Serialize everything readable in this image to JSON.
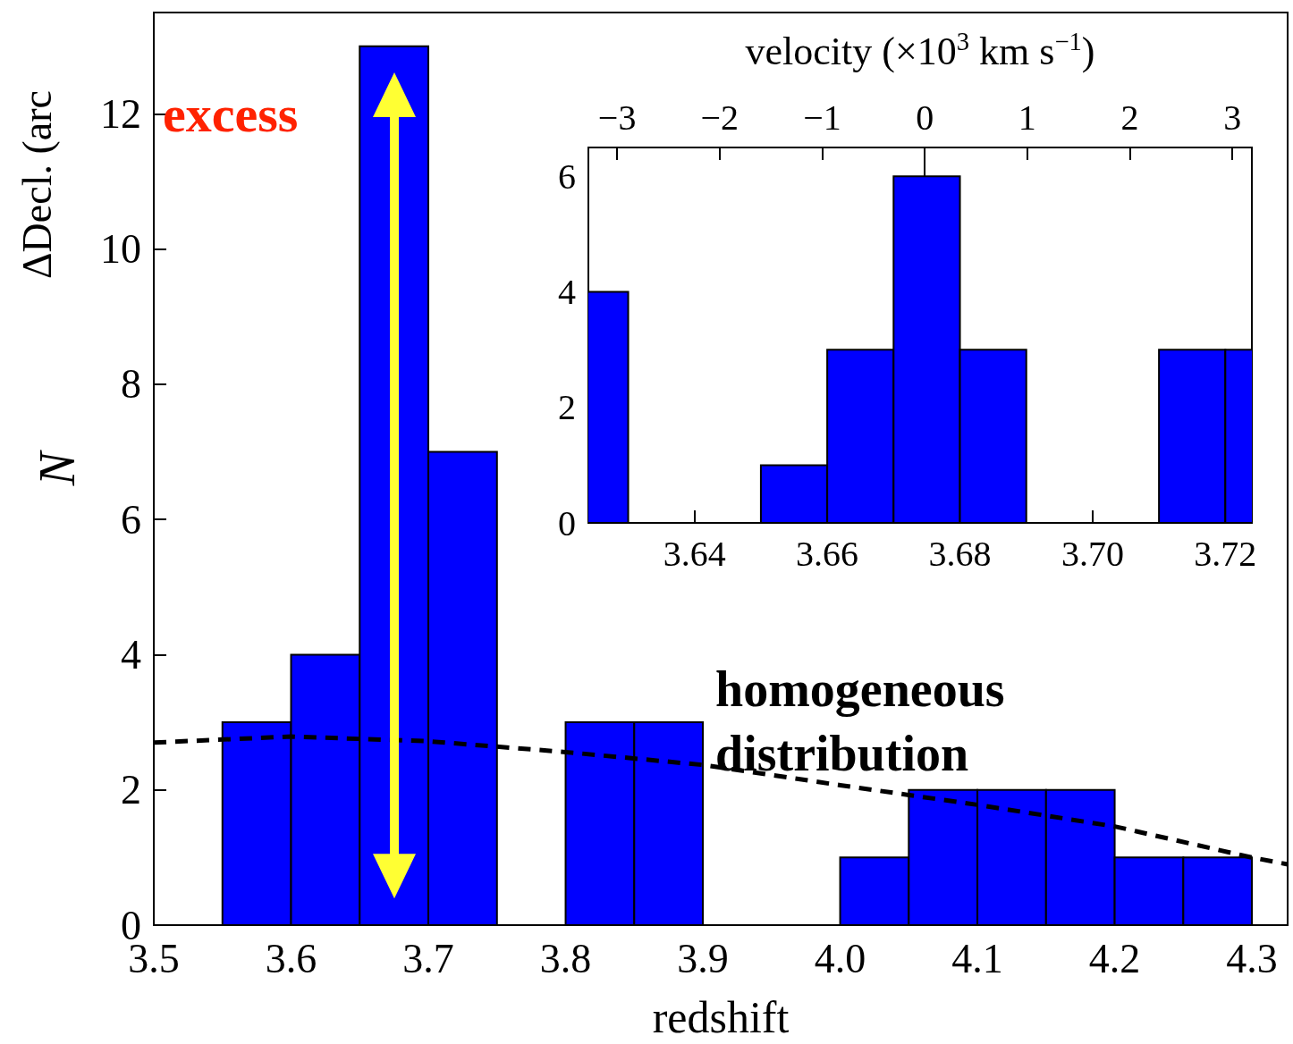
{
  "chart_data": [
    {
      "type": "histogram",
      "xlabel": "redshift",
      "ylabel": "N",
      "annotations": [
        "excess",
        "homogeneous distribution",
        "ΔDecl. (arc"
      ],
      "bins": [
        3.55,
        3.6,
        3.65,
        3.7,
        3.75,
        3.8,
        3.85,
        3.9,
        3.95,
        4.0,
        4.05,
        4.1,
        4.15,
        4.2,
        4.25,
        4.3
      ],
      "xlim": [
        3.5,
        4.326
      ],
      "xticks": [
        3.5,
        3.6,
        3.7,
        3.8,
        3.9,
        {
          "value": 4,
          "label": "4.0"
        },
        4.1,
        4.2,
        4.3
      ],
      "ylim": [
        0,
        13.5
      ],
      "yticks": [
        0,
        2,
        4,
        6,
        8,
        10,
        12
      ],
      "series": [
        {
          "type": "histogram",
          "color": "#0000ff",
          "values": [
            3,
            4,
            13,
            7,
            0,
            3,
            3,
            0,
            0,
            1,
            2,
            2,
            2,
            1,
            1
          ]
        },
        {
          "type": "line",
          "color": "#000000",
          "line_style": "dashed",
          "marker": "none",
          "x": [
            3.5,
            3.6,
            3.7,
            3.8,
            3.9,
            4.0,
            4.1,
            4.2,
            4.3,
            4.326
          ],
          "values": [
            2.7,
            2.79,
            2.72,
            2.56,
            2.37,
            2.07,
            1.78,
            1.46,
            1.0,
            0.9
          ]
        }
      ]
    },
    {
      "type": "histogram",
      "color": "#0000ff",
      "bins": [
        3.62,
        3.63,
        3.64,
        3.65,
        3.66,
        3.67,
        3.68,
        3.69,
        3.7,
        3.71,
        3.72,
        3.73
      ],
      "values": [
        4,
        0,
        0,
        1,
        3,
        6,
        3,
        0,
        0,
        3,
        3
      ],
      "xlim": [
        3.624,
        3.724
      ],
      "xticks": [
        3.64,
        3.66,
        3.68,
        {
          "value": 3.7,
          "label": "3.70"
        },
        3.72
      ],
      "ylim": [
        0,
        6.5
      ],
      "yticks": [
        0,
        2,
        4,
        6
      ],
      "x2label": "velocity (×10$^{3}$ km s$^{−1}$)",
      "x2lim": [
        -3.28,
        3.19
      ],
      "x2ticks": [
        {
          "value": -3,
          "label": "−3"
        },
        {
          "value": -2,
          "label": "−2"
        },
        {
          "value": -1,
          "label": "−1"
        },
        0,
        1,
        2,
        3
      ]
    }
  ]
}
